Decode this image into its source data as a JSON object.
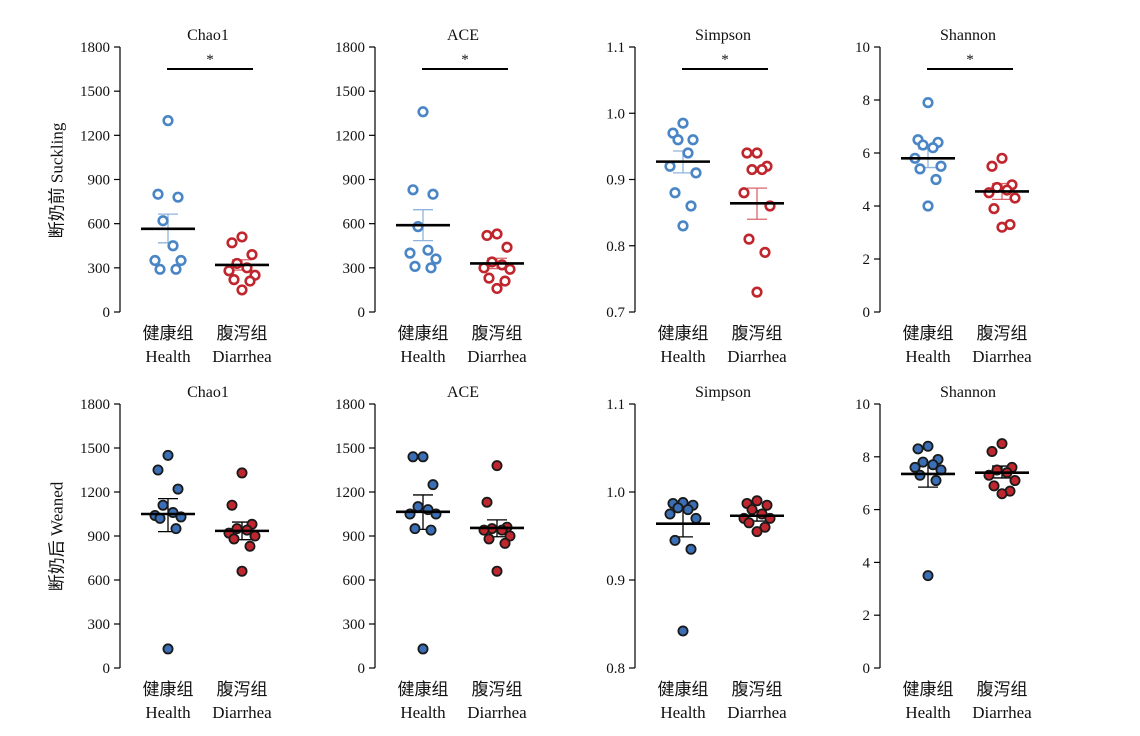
{
  "row_labels": [
    "断奶前 Suckling",
    "断奶后 Weaned"
  ],
  "group_labels": [
    {
      "cn": "健康组",
      "en": "Health"
    },
    {
      "cn": "腹泻组",
      "en": "Diarrhea"
    }
  ],
  "colors": {
    "health_suckling": "#4a86c5",
    "diarrhea_suckling": "#c0262d",
    "health_weaned_fill": "#3a6fb5",
    "diarrhea_weaned_fill": "#c0262d",
    "outline_weaned": "#1a1a1a",
    "health_errorbar": "#8fb3da",
    "diarrhea_errorbar": "#d9666b",
    "mean_line": "#000000",
    "axis": "#000000"
  },
  "chart_data": [
    {
      "type": "scatter",
      "title": "Chao1",
      "row": "Suckling",
      "ylim": [
        0,
        1800
      ],
      "yticks": [
        0,
        300,
        600,
        900,
        1200,
        1500,
        1800
      ],
      "significance": "*",
      "series": [
        {
          "group": "Health",
          "values": [
            1300,
            800,
            780,
            620,
            450,
            350,
            350,
            290,
            290
          ],
          "mean": 565,
          "sem_low": 470,
          "sem_high": 665
        },
        {
          "group": "Diarrhea",
          "values": [
            510,
            470,
            390,
            330,
            300,
            280,
            250,
            220,
            210,
            150
          ],
          "mean": 320,
          "sem_low": 285,
          "sem_high": 355
        }
      ]
    },
    {
      "type": "scatter",
      "title": "ACE",
      "row": "Suckling",
      "ylim": [
        0,
        1800
      ],
      "yticks": [
        0,
        300,
        600,
        900,
        1200,
        1500,
        1800
      ],
      "significance": "*",
      "series": [
        {
          "group": "Health",
          "values": [
            1360,
            830,
            800,
            580,
            420,
            400,
            360,
            310,
            300
          ],
          "mean": 590,
          "sem_low": 485,
          "sem_high": 695
        },
        {
          "group": "Diarrhea",
          "values": [
            530,
            520,
            440,
            340,
            320,
            300,
            290,
            230,
            210,
            160
          ],
          "mean": 330,
          "sem_low": 295,
          "sem_high": 365
        }
      ]
    },
    {
      "type": "scatter",
      "title": "Simpson",
      "row": "Suckling",
      "ylim": [
        0.7,
        1.1
      ],
      "yticks": [
        0.7,
        0.8,
        0.9,
        1.0,
        1.1
      ],
      "significance": "*",
      "series": [
        {
          "group": "Health",
          "values": [
            0.985,
            0.97,
            0.96,
            0.96,
            0.94,
            0.92,
            0.91,
            0.88,
            0.86,
            0.83
          ],
          "mean": 0.927,
          "sem_low": 0.91,
          "sem_high": 0.943
        },
        {
          "group": "Diarrhea",
          "values": [
            0.94,
            0.94,
            0.92,
            0.915,
            0.915,
            0.88,
            0.86,
            0.81,
            0.79,
            0.73
          ],
          "mean": 0.864,
          "sem_low": 0.84,
          "sem_high": 0.887
        }
      ]
    },
    {
      "type": "scatter",
      "title": "Shannon",
      "row": "Suckling",
      "ylim": [
        0,
        10
      ],
      "yticks": [
        0,
        2,
        4,
        6,
        8,
        10
      ],
      "significance": "*",
      "series": [
        {
          "group": "Health",
          "values": [
            7.9,
            6.5,
            6.4,
            6.3,
            6.2,
            5.8,
            5.5,
            5.4,
            5.0,
            4.0
          ],
          "mean": 5.8,
          "sem_low": 5.45,
          "sem_high": 6.15
        },
        {
          "group": "Diarrhea",
          "values": [
            5.8,
            5.5,
            4.8,
            4.7,
            4.6,
            4.5,
            4.3,
            3.9,
            3.3,
            3.2
          ],
          "mean": 4.55,
          "sem_low": 4.25,
          "sem_high": 4.85
        }
      ]
    },
    {
      "type": "scatter",
      "title": "Chao1",
      "row": "Weaned",
      "ylim": [
        0,
        1800
      ],
      "yticks": [
        0,
        300,
        600,
        900,
        1200,
        1500,
        1800
      ],
      "significance": "",
      "series": [
        {
          "group": "Health",
          "values": [
            1450,
            1350,
            1220,
            1110,
            1060,
            1040,
            1030,
            1020,
            950,
            130
          ],
          "mean": 1050,
          "sem_low": 930,
          "sem_high": 1155
        },
        {
          "group": "Diarrhea",
          "values": [
            1330,
            1110,
            980,
            950,
            940,
            920,
            900,
            880,
            830,
            660
          ],
          "mean": 935,
          "sem_low": 875,
          "sem_high": 995
        }
      ]
    },
    {
      "type": "scatter",
      "title": "ACE",
      "row": "Weaned",
      "ylim": [
        0,
        1800
      ],
      "yticks": [
        0,
        300,
        600,
        900,
        1200,
        1500,
        1800
      ],
      "significance": "",
      "series": [
        {
          "group": "Health",
          "values": [
            1440,
            1440,
            1250,
            1100,
            1080,
            1050,
            1050,
            950,
            940,
            130
          ],
          "mean": 1065,
          "sem_low": 945,
          "sem_high": 1180
        },
        {
          "group": "Diarrhea",
          "values": [
            1380,
            1130,
            960,
            950,
            940,
            940,
            900,
            880,
            850,
            660
          ],
          "mean": 955,
          "sem_low": 895,
          "sem_high": 1010
        }
      ]
    },
    {
      "type": "scatter",
      "title": "Simpson",
      "row": "Weaned",
      "ylim": [
        0.8,
        1.1
      ],
      "yticks": [
        0.8,
        0.9,
        1.0,
        1.1
      ],
      "significance": "",
      "series": [
        {
          "group": "Health",
          "values": [
            0.988,
            0.987,
            0.985,
            0.982,
            0.98,
            0.975,
            0.97,
            0.945,
            0.935,
            0.842
          ],
          "mean": 0.964,
          "sem_low": 0.949,
          "sem_high": 0.979
        },
        {
          "group": "Diarrhea",
          "values": [
            0.99,
            0.987,
            0.985,
            0.98,
            0.975,
            0.97,
            0.97,
            0.965,
            0.96,
            0.955
          ],
          "mean": 0.973,
          "sem_low": 0.967,
          "sem_high": 0.979
        }
      ]
    },
    {
      "type": "scatter",
      "title": "Shannon",
      "row": "Weaned",
      "ylim": [
        0,
        10
      ],
      "yticks": [
        0,
        2,
        4,
        6,
        8,
        10
      ],
      "significance": "",
      "series": [
        {
          "group": "Health",
          "values": [
            8.4,
            8.3,
            7.9,
            7.8,
            7.7,
            7.6,
            7.5,
            7.3,
            7.1,
            3.5
          ],
          "mean": 7.35,
          "sem_low": 6.85,
          "sem_high": 7.75
        },
        {
          "group": "Diarrhea",
          "values": [
            8.5,
            8.2,
            7.6,
            7.5,
            7.4,
            7.3,
            7.1,
            6.9,
            6.7,
            6.6
          ],
          "mean": 7.4,
          "sem_low": 7.2,
          "sem_high": 7.65
        }
      ]
    }
  ]
}
